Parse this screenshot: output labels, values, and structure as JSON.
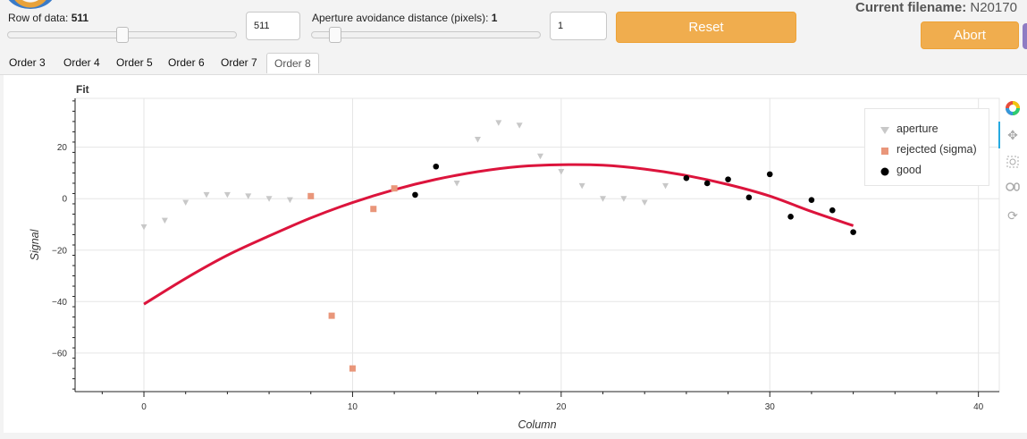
{
  "controls": {
    "row_label": "Row of data:",
    "row_value": "511",
    "row_input": "511",
    "aperture_label": "Aperture avoidance distance (pixels):",
    "aperture_value": "1",
    "aperture_input": "1",
    "reset_label": "Reset",
    "abort_label": "Abort",
    "filename_label": "Current filename:",
    "filename_value": "N20170"
  },
  "tabs": [
    "Order 3",
    "Order 4",
    "Order 5",
    "Order 6",
    "Order 7",
    "Order 8"
  ],
  "active_tab": "Order 8",
  "toolbar": [
    "bokeh-logo-icon",
    "pan-icon",
    "box-zoom-icon",
    "wheel-zoom-icon",
    "reset-icon"
  ],
  "colors": {
    "aperture": "#c8c8c8",
    "rejected": "#e9967a",
    "good": "#000000",
    "fit": "#dc143c"
  },
  "chart_data": {
    "type": "scatter",
    "title": "Fit",
    "xlabel": "Column",
    "ylabel": "Signal",
    "xlim": [
      -3.3,
      41
    ],
    "ylim": [
      -75,
      39
    ],
    "xticks": [
      0,
      10,
      20,
      30,
      40
    ],
    "yticks": [
      -60,
      -40,
      -20,
      0,
      20
    ],
    "grid": true,
    "legend_position": "top-right",
    "series": [
      {
        "name": "aperture",
        "marker": "triangle-down",
        "x": [
          0,
          1,
          2,
          3,
          4,
          5,
          6,
          7,
          12,
          15,
          16,
          17,
          18,
          19,
          20,
          21,
          22,
          23,
          24,
          25
        ],
        "y": [
          -11,
          -8.5,
          -1.5,
          1.5,
          1.5,
          1,
          0,
          -0.5,
          4,
          6,
          23,
          29.5,
          28.5,
          16.5,
          10.5,
          5,
          0,
          0,
          -1.5,
          5
        ]
      },
      {
        "name": "rejected (sigma)",
        "marker": "square",
        "x": [
          8,
          9,
          10,
          11,
          12
        ],
        "y": [
          1,
          -45.5,
          -66,
          -4,
          4
        ]
      },
      {
        "name": "good",
        "marker": "circle",
        "x": [
          13,
          14,
          26,
          27,
          28,
          29,
          30,
          31,
          32,
          33,
          34
        ],
        "y": [
          1.5,
          12.5,
          8,
          6,
          7.5,
          0.5,
          9.5,
          -7,
          -0.5,
          -4.5,
          -13
        ]
      }
    ],
    "fit": {
      "name": "fit",
      "x": [
        0,
        2,
        4,
        6,
        8,
        10,
        12,
        14,
        16,
        18,
        20,
        22,
        24,
        26,
        28,
        30,
        32,
        34
      ],
      "y": [
        -41,
        -31,
        -22,
        -14.5,
        -7.5,
        -1.5,
        3.5,
        7.5,
        10.5,
        12.5,
        13.2,
        13,
        11.5,
        9,
        5.5,
        1,
        -5,
        -10.5
      ]
    }
  }
}
